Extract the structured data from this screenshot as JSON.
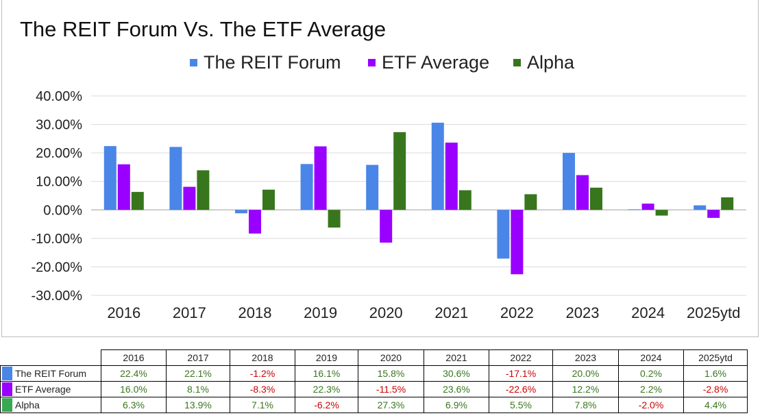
{
  "chart_data": {
    "type": "bar",
    "title": "The REIT Forum Vs. The ETF Average",
    "categories": [
      "2016",
      "2017",
      "2018",
      "2019",
      "2020",
      "2021",
      "2022",
      "2023",
      "2024",
      "2025ytd"
    ],
    "series": [
      {
        "name": "The REIT Forum",
        "color": "#4a86e8",
        "values": [
          22.4,
          22.1,
          -1.2,
          16.1,
          15.8,
          30.6,
          -17.1,
          20.0,
          0.2,
          1.6
        ]
      },
      {
        "name": "ETF Average",
        "color": "#9900ff",
        "values": [
          16.0,
          8.1,
          -8.3,
          22.3,
          -11.5,
          23.6,
          -22.6,
          12.2,
          2.2,
          -2.8
        ]
      },
      {
        "name": "Alpha",
        "color": "#38761d",
        "values": [
          6.3,
          13.9,
          7.1,
          -6.2,
          27.3,
          6.9,
          5.5,
          7.8,
          -2.0,
          4.4
        ]
      }
    ],
    "ylim": [
      -30,
      40
    ],
    "yticks": [
      "40.00%",
      "30.00%",
      "20.00%",
      "10.00%",
      "0.00%",
      "-10.00%",
      "-20.00%",
      "-30.00%"
    ],
    "grid": true,
    "legend_position": "top"
  },
  "table": {
    "headers": [
      "2016",
      "2017",
      "2018",
      "2019",
      "2020",
      "2021",
      "2022",
      "2023",
      "2024",
      "2025ytd"
    ],
    "rows": [
      {
        "label": "The REIT Forum",
        "swatch": "#4a86e8",
        "cells": [
          "22.4%",
          "22.1%",
          "-1.2%",
          "16.1%",
          "15.8%",
          "30.6%",
          "-17.1%",
          "20.0%",
          "0.2%",
          "1.6%"
        ]
      },
      {
        "label": "ETF Average",
        "swatch": "#9900ff",
        "cells": [
          "16.0%",
          "8.1%",
          "-8.3%",
          "22.3%",
          "-11.5%",
          "23.6%",
          "-22.6%",
          "12.2%",
          "2.2%",
          "-2.8%"
        ]
      },
      {
        "label": "Alpha",
        "swatch": "#38a853",
        "cells": [
          "6.3%",
          "13.9%",
          "7.1%",
          "-6.2%",
          "27.3%",
          "6.9%",
          "5.5%",
          "7.8%",
          "-2.0%",
          "4.4%"
        ]
      }
    ]
  }
}
